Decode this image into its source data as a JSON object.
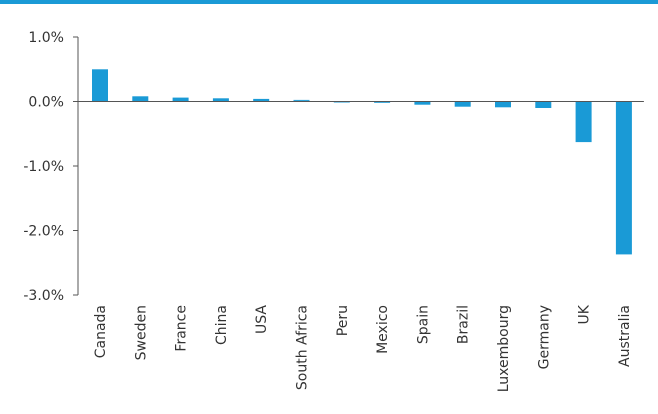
{
  "colors": {
    "accent": "#1a9ad6",
    "bar": "#1a9ad6",
    "axis": "#555555",
    "text": "#333333"
  },
  "chart_data": {
    "type": "bar",
    "title": "",
    "xlabel": "",
    "ylabel": "",
    "ylim": [
      -3.0,
      1.0
    ],
    "yticks": [
      1.0,
      0.0,
      -1.0,
      -2.0,
      -3.0
    ],
    "ytick_labels": [
      "1.0%",
      "0.0%",
      "-1.0%",
      "-2.0%",
      "-3.0%"
    ],
    "grid": false,
    "categories": [
      "Canada",
      "Sweden",
      "France",
      "China",
      "USA",
      "South Africa",
      "Peru",
      "Mexico",
      "Spain",
      "Brazil",
      "Luxembourg",
      "Germany",
      "UK",
      "Australia"
    ],
    "values": [
      0.5,
      0.08,
      0.06,
      0.05,
      0.04,
      0.01,
      -0.01,
      -0.02,
      -0.05,
      -0.08,
      -0.09,
      -0.1,
      -0.63,
      -2.37
    ]
  }
}
